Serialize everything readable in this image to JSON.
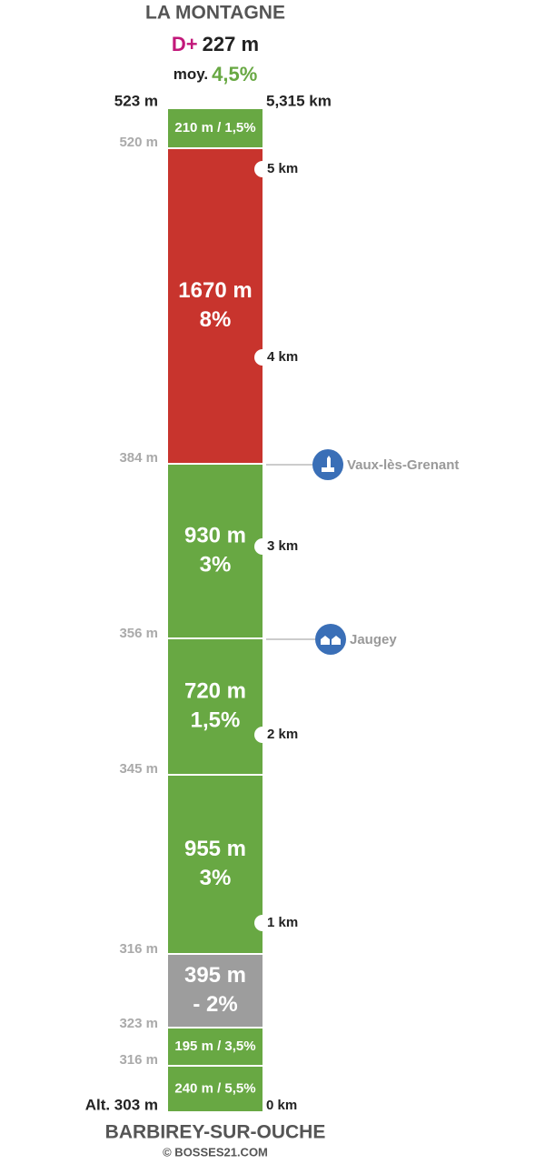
{
  "header": {
    "title": "LA MONTAGNE",
    "gain_label": "D+",
    "gain": "227 m",
    "avg_label": "moy.",
    "avg": "4,5%"
  },
  "top": {
    "altitude": "523 m",
    "distance": "5,315 km"
  },
  "segments": [
    {
      "lines": [
        "210 m / 1,5%"
      ],
      "color": "#68a843"
    },
    {
      "lines": [
        "1670 m",
        "8%"
      ],
      "color": "#c8342d"
    },
    {
      "lines": [
        "930 m",
        "3%"
      ],
      "color": "#68a843"
    },
    {
      "lines": [
        "720 m",
        "1,5%"
      ],
      "color": "#68a843"
    },
    {
      "lines": [
        "955 m",
        "3%"
      ],
      "color": "#68a843"
    },
    {
      "lines": [
        "395 m",
        "- 2%"
      ],
      "color": "#9d9d9d"
    },
    {
      "lines": [
        "195 m / 3,5%"
      ],
      "color": "#68a843"
    },
    {
      "lines": [
        "240 m / 5,5%"
      ],
      "color": "#68a843"
    }
  ],
  "altitudes": [
    "520 m",
    "384 m",
    "356 m",
    "345 m",
    "316 m",
    "323 m",
    "316 m"
  ],
  "km_markers": [
    "5 km",
    "4 km",
    "3 km",
    "2 km",
    "1 km"
  ],
  "places": [
    "Vaux-lès-Grenant",
    "Jaugey"
  ],
  "bottom": {
    "altitude": "Alt. 303 m",
    "distance": "0 km",
    "name": "BARBIREY-SUR-OUCHE",
    "credit": "© BOSSES21.COM"
  }
}
